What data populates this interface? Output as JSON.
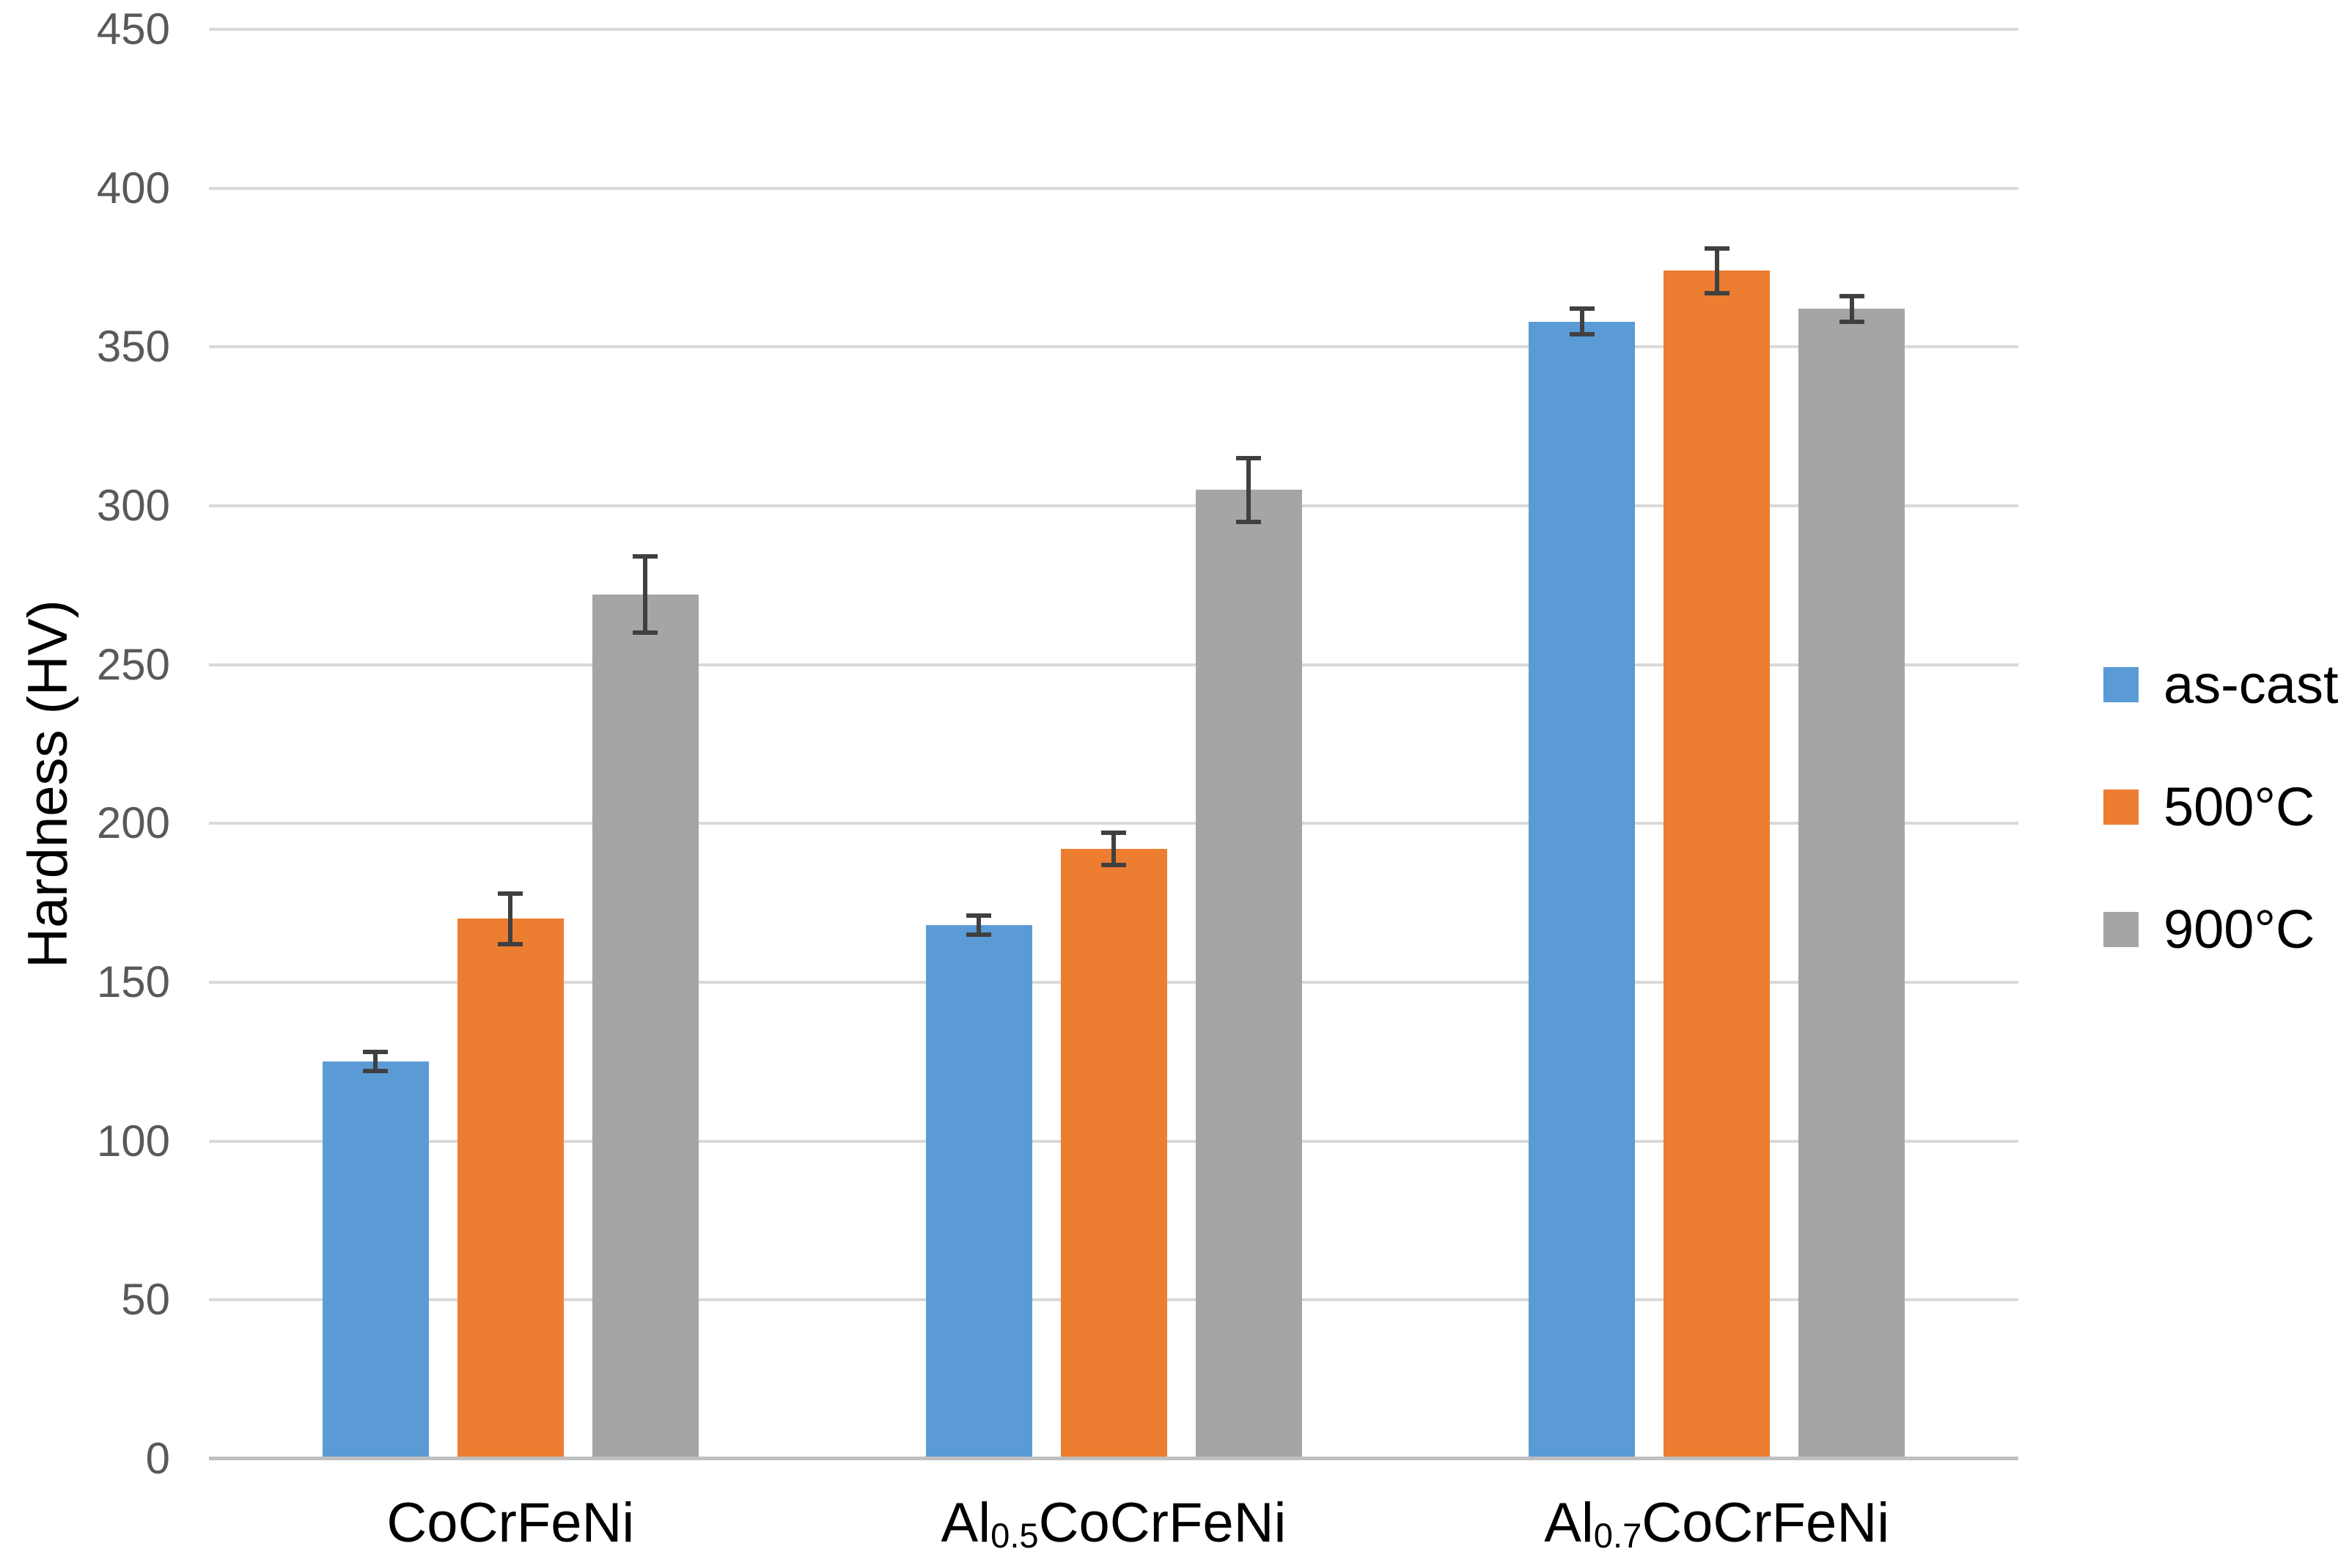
{
  "chart_data": {
    "type": "bar",
    "title": "",
    "xlabel": "",
    "ylabel": "Hardness (HV)",
    "ylim": [
      0,
      450
    ],
    "ytick_step": 50,
    "yticks": [
      0,
      50,
      100,
      150,
      200,
      250,
      300,
      350,
      400,
      450
    ],
    "grid": true,
    "legend_position": "right",
    "categories": [
      "CoCrFeNi",
      "Al0.5CoCrFeNi",
      "Al0.7CoCrFeNi"
    ],
    "categories_rich": [
      {
        "pre": "CoCrFeNi",
        "sub": "",
        "post": ""
      },
      {
        "pre": "Al",
        "sub": "0.5",
        "post": "CoCrFeNi"
      },
      {
        "pre": "Al",
        "sub": "0.7",
        "post": "CoCrFeNi"
      }
    ],
    "series": [
      {
        "name": "as-cast",
        "color": "#5B9BD5",
        "values": [
          125,
          168,
          358
        ],
        "errors": [
          3,
          3,
          4
        ]
      },
      {
        "name": "500°C",
        "color": "#ED7D31",
        "values": [
          170,
          192,
          374
        ],
        "errors": [
          8,
          5,
          7
        ]
      },
      {
        "name": "900°C",
        "color": "#A5A5A5",
        "values": [
          272,
          305,
          362
        ],
        "errors": [
          12,
          10,
          4
        ]
      }
    ],
    "style": {
      "background": "#FFFFFF",
      "gridline_color": "#D9D9D9",
      "axis_line_color": "#BFBFBF",
      "error_bar_color": "#404040",
      "tick_label_color": "#595959",
      "category_label_color": "#000000",
      "y_title_color": "#000000",
      "legend_text_color": "#000000"
    }
  }
}
